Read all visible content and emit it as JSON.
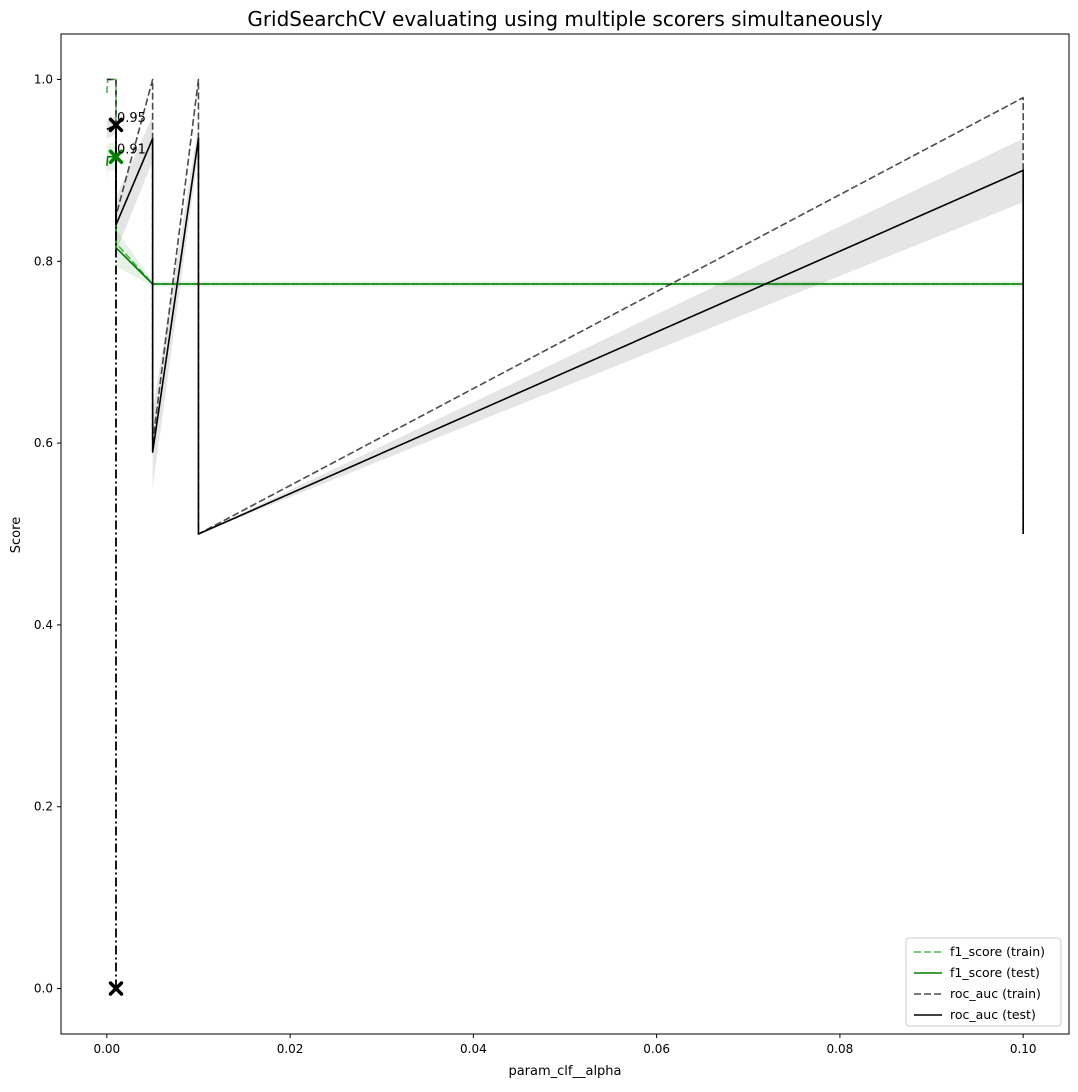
{
  "chart_data": {
    "type": "line",
    "title": "GridSearchCV evaluating using multiple scorers simultaneously",
    "xlabel": "param_clf__alpha",
    "ylabel": "Score",
    "xlim": [
      -0.005,
      0.105
    ],
    "ylim": [
      -0.05,
      1.05
    ],
    "xticks": [
      0.0,
      0.02,
      0.04,
      0.06,
      0.08,
      0.1
    ],
    "xtick_labels": [
      "0.00",
      "0.02",
      "0.04",
      "0.06",
      "0.08",
      "0.10"
    ],
    "yticks": [
      0.0,
      0.2,
      0.4,
      0.6,
      0.8,
      1.0
    ],
    "ytick_labels": [
      "0.0",
      "0.2",
      "0.4",
      "0.6",
      "0.8",
      "1.0"
    ],
    "grid": false,
    "legend_position": "bottom-right",
    "series": [
      {
        "name": "f1_score (train)",
        "color": "#2ca02c",
        "style": "dashed",
        "opacity": 0.8,
        "x": [
          0.0,
          0.0001,
          0.0001,
          0.001,
          0.001,
          0.005,
          0.005,
          0.01,
          0.01,
          0.1,
          0.1
        ],
        "y": [
          0.985,
          1.0,
          1.0,
          1.0,
          0.82,
          0.775,
          0.775,
          0.775,
          0.775,
          0.775,
          0.775
        ]
      },
      {
        "name": "f1_score (test)",
        "color": "#008000",
        "style": "solid",
        "opacity": 1.0,
        "x": [
          0.0,
          0.0001,
          0.0001,
          0.001,
          0.001,
          0.005,
          0.005,
          0.01,
          0.01,
          0.1,
          0.1
        ],
        "y": [
          0.905,
          0.915,
          0.915,
          0.915,
          0.815,
          0.775,
          0.775,
          0.775,
          0.775,
          0.775,
          0.775
        ],
        "band_upper": [
          0.925,
          0.93,
          0.93,
          0.93,
          0.835,
          0.778,
          0.778,
          0.778,
          0.778,
          0.778,
          0.778
        ],
        "band_lower": [
          0.885,
          0.9,
          0.9,
          0.9,
          0.795,
          0.772,
          0.772,
          0.772,
          0.772,
          0.772,
          0.772
        ]
      },
      {
        "name": "roc_auc (train)",
        "color": "#000000",
        "style": "dashed",
        "opacity": 0.7,
        "x": [
          0.0,
          0.001,
          0.001,
          0.005,
          0.005,
          0.01,
          0.01,
          0.1,
          0.1
        ],
        "y": [
          1.0,
          1.0,
          0.85,
          1.0,
          0.6,
          1.0,
          0.5,
          0.98,
          0.5
        ],
        "band_upper": [],
        "band_lower": []
      },
      {
        "name": "roc_auc (test)",
        "color": "#000000",
        "style": "solid",
        "opacity": 1.0,
        "x": [
          0.0,
          0.001,
          0.001,
          0.005,
          0.005,
          0.01,
          0.01,
          0.1,
          0.1
        ],
        "y": [
          0.945,
          0.95,
          0.84,
          0.935,
          0.59,
          0.935,
          0.5,
          0.9,
          0.5
        ],
        "band_upper": [
          0.955,
          0.96,
          0.87,
          0.96,
          0.635,
          0.95,
          0.5,
          0.935,
          0.5
        ],
        "band_lower": [
          0.935,
          0.94,
          0.81,
          0.91,
          0.55,
          0.92,
          0.5,
          0.865,
          0.5
        ]
      }
    ],
    "best_markers": [
      {
        "series": "f1_score (test)",
        "x": 0.001,
        "y": 0.915,
        "label": "0.91",
        "color": "#008000"
      },
      {
        "series": "roc_auc (test)",
        "x": 0.001,
        "y": 0.95,
        "label": "0.95",
        "color": "#000000"
      }
    ],
    "best_vline": {
      "x": 0.001,
      "y_from": 0.0,
      "y_to": 0.95,
      "color": "#000000",
      "style": "dashdot"
    },
    "extra_marker": {
      "x": 0.001,
      "y": 0.0,
      "color": "#000000"
    }
  }
}
